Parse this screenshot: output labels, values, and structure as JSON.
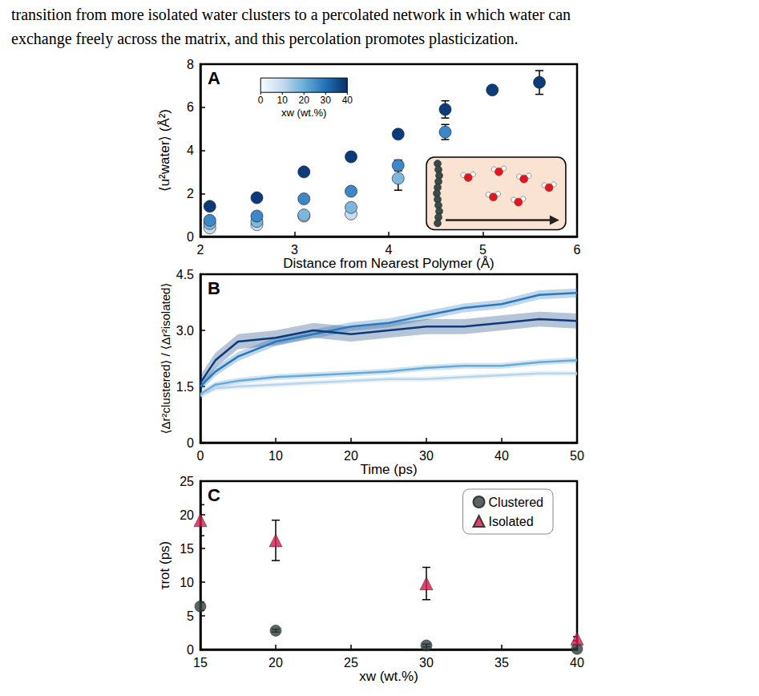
{
  "text_lines": [
    "transition from more isolated water clusters to a percolated network in which water can",
    "exchange freely across the matrix, and this percolation promotes plasticization."
  ],
  "chart_data": [
    {
      "panel_label": "A",
      "type": "scatter",
      "x_label": "Distance from Nearest Polymer (Å)",
      "y_label": "⟨u²water⟩ (Å²)",
      "xlim": [
        2,
        6
      ],
      "xticks": [
        2,
        3,
        4,
        5,
        6
      ],
      "ylim": [
        0,
        8
      ],
      "yticks": [
        0,
        2,
        4,
        6,
        8
      ],
      "grid": false,
      "colorbar": {
        "label": "xw (wt.%)",
        "range": [
          0,
          40
        ],
        "ticks": [
          0,
          10,
          20,
          30,
          40
        ]
      },
      "series": [
        {
          "color": "#c6dbef",
          "x": [
            2.1,
            2.6,
            3.1,
            3.6
          ],
          "values": [
            0.4,
            0.55,
            0.95,
            1.05
          ],
          "errors": [
            null,
            null,
            null,
            null
          ]
        },
        {
          "color": "#7db7de",
          "x": [
            2.1,
            2.6,
            3.1,
            3.6,
            4.1
          ],
          "values": [
            0.6,
            0.7,
            1.0,
            1.35,
            2.7
          ],
          "errors": [
            null,
            null,
            null,
            null,
            0.55
          ]
        },
        {
          "color": "#3b87c7",
          "x": [
            2.1,
            2.6,
            3.1,
            3.6,
            4.1,
            4.6
          ],
          "values": [
            0.75,
            0.95,
            1.75,
            2.1,
            3.3,
            4.85
          ],
          "errors": [
            null,
            null,
            null,
            null,
            0.25,
            0.35
          ]
        },
        {
          "color": "#0c3b7c",
          "x": [
            2.1,
            2.6,
            3.1,
            3.6,
            4.1,
            4.6,
            5.1,
            5.6
          ],
          "values": [
            1.4,
            1.8,
            3.0,
            3.7,
            4.75,
            5.9,
            6.8,
            7.15
          ],
          "errors": [
            null,
            null,
            null,
            null,
            null,
            0.4,
            0.15,
            0.55
          ]
        }
      ]
    },
    {
      "panel_label": "B",
      "type": "line",
      "x_label": "Time (ps)",
      "y_label": "⟨Δr²clustered⟩ / ⟨Δr²isolated⟩",
      "xlim": [
        0,
        50
      ],
      "xticks": [
        0,
        10,
        20,
        30,
        40,
        50
      ],
      "ylim": [
        0,
        4.5
      ],
      "yticks": [
        0,
        1.5,
        {
          "value": 3,
          "label": "3.0"
        },
        4.5
      ],
      "grid": false,
      "x": [
        0,
        2,
        5,
        10,
        15,
        20,
        25,
        30,
        35,
        40,
        45,
        50
      ],
      "series": [
        {
          "color": "#b9d5ec",
          "values": [
            1.25,
            1.45,
            1.5,
            1.55,
            1.6,
            1.65,
            1.7,
            1.7,
            1.75,
            1.8,
            1.85,
            1.85
          ],
          "lower": [
            1.18,
            1.38,
            1.43,
            1.48,
            1.53,
            1.58,
            1.63,
            1.63,
            1.68,
            1.73,
            1.78,
            1.78
          ],
          "upper": [
            1.32,
            1.52,
            1.57,
            1.62,
            1.67,
            1.72,
            1.77,
            1.77,
            1.82,
            1.87,
            1.92,
            1.92
          ]
        },
        {
          "color": "#6aaad8",
          "values": [
            1.3,
            1.55,
            1.65,
            1.75,
            1.8,
            1.85,
            1.9,
            2.0,
            2.05,
            2.05,
            2.15,
            2.2
          ],
          "lower": [
            1.22,
            1.47,
            1.57,
            1.67,
            1.72,
            1.77,
            1.82,
            1.92,
            1.97,
            1.97,
            2.07,
            2.12
          ],
          "upper": [
            1.38,
            1.63,
            1.73,
            1.83,
            1.88,
            1.93,
            1.98,
            2.08,
            2.13,
            2.13,
            2.23,
            2.28
          ]
        },
        {
          "color": "#2c78bd",
          "values": [
            1.5,
            1.9,
            2.3,
            2.7,
            2.9,
            3.1,
            3.2,
            3.4,
            3.6,
            3.7,
            3.95,
            4.0
          ],
          "lower": [
            1.38,
            1.78,
            2.18,
            2.58,
            2.78,
            2.98,
            3.08,
            3.28,
            3.48,
            3.58,
            3.83,
            3.88
          ],
          "upper": [
            1.62,
            2.02,
            2.42,
            2.82,
            3.02,
            3.22,
            3.32,
            3.52,
            3.72,
            3.82,
            4.07,
            4.12
          ]
        },
        {
          "color": "#0c3b7c",
          "values": [
            1.6,
            2.2,
            2.7,
            2.8,
            3.0,
            2.9,
            3.0,
            3.1,
            3.1,
            3.2,
            3.3,
            3.25
          ],
          "lower": [
            1.4,
            2.0,
            2.5,
            2.6,
            2.8,
            2.7,
            2.8,
            2.9,
            2.9,
            3.0,
            3.1,
            3.05
          ],
          "upper": [
            1.8,
            2.4,
            2.9,
            3.0,
            3.2,
            3.1,
            3.2,
            3.3,
            3.3,
            3.4,
            3.5,
            3.45
          ]
        }
      ]
    },
    {
      "panel_label": "C",
      "type": "scatter",
      "x_label": "xw (wt.%)",
      "y_label": "τrot (ps)",
      "xlim": [
        15,
        40
      ],
      "xticks": [
        15,
        20,
        25,
        30,
        35,
        40
      ],
      "ylim": [
        0,
        25
      ],
      "yticks": [
        0,
        5,
        10,
        15,
        20,
        25
      ],
      "grid": false,
      "legend": "upper right",
      "x": [
        15,
        20,
        30,
        40
      ],
      "series": [
        {
          "name": "Clustered",
          "color": "#2f3e3e",
          "marker": "circle",
          "values": [
            6.4,
            2.8,
            0.6,
            0.1
          ],
          "errors": [
            0.6,
            0.2,
            0.2,
            0.1
          ]
        },
        {
          "name": "Isolated",
          "color": "#d6174b",
          "marker": "triangle",
          "values": [
            19.2,
            16.2,
            9.8,
            1.6
          ],
          "errors": [
            2.3,
            3.0,
            2.4,
            0.3
          ]
        }
      ]
    }
  ]
}
